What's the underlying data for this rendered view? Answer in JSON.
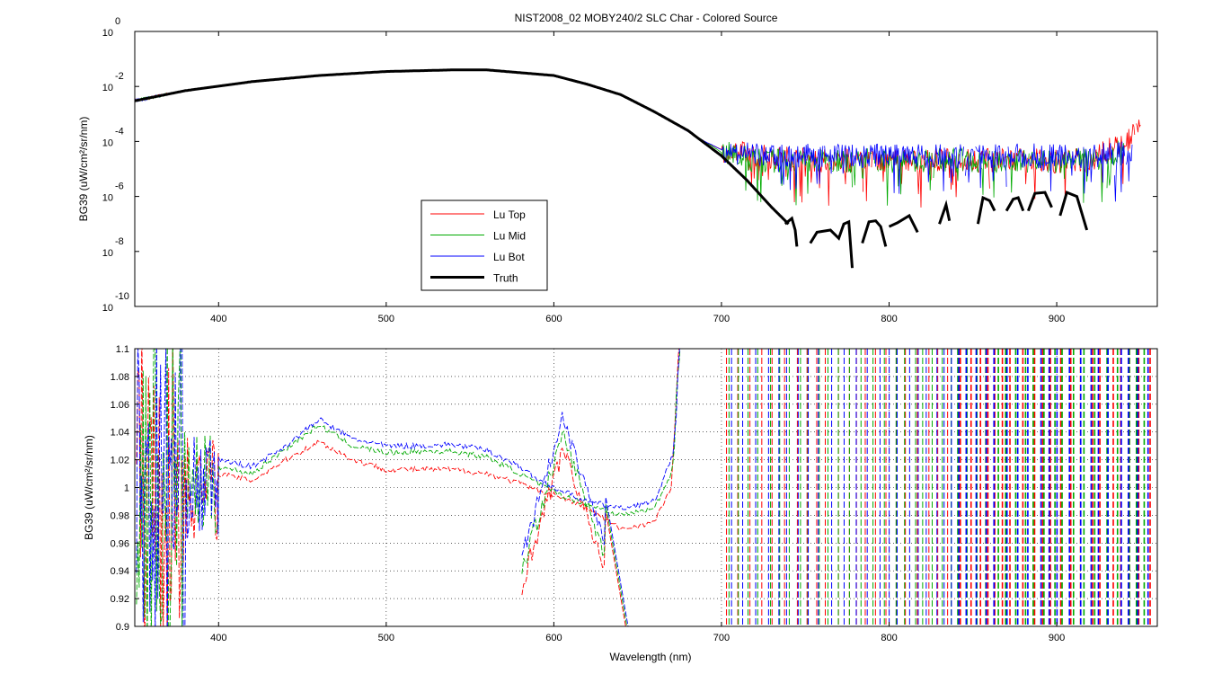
{
  "figure_title": "NIST2008_02  MOBY240/2 SLC Char - Colored Source",
  "colors": {
    "Lu Top": "#ff0000",
    "Lu Mid": "#00aa00",
    "Lu Bot": "#0000ff",
    "Truth": "#000000"
  },
  "chart_data": [
    {
      "type": "line",
      "title": "NIST2008_02  MOBY240/2 SLC Char - Colored Source",
      "xlabel": "",
      "ylabel": "BG39  (uW/cm²/sr/nm)",
      "yscale": "log",
      "xlim": [
        350,
        960
      ],
      "ylim": [
        1e-10,
        1
      ],
      "xticks": [
        400,
        500,
        600,
        700,
        800,
        900
      ],
      "yticks": [
        {
          "base": "10",
          "exp": "0",
          "value": 0
        },
        {
          "base": "10",
          "exp": "-2",
          "value": -2
        },
        {
          "base": "10",
          "exp": "-4",
          "value": -4
        },
        {
          "base": "10",
          "exp": "-6",
          "value": -6
        },
        {
          "base": "10",
          "exp": "-8",
          "value": -8
        },
        {
          "base": "10",
          "exp": "-10",
          "value": -10
        }
      ],
      "grid": false,
      "legend": "lower-left-center",
      "series": [
        {
          "name": "Lu Top",
          "x": [
            350,
            380,
            420,
            460,
            500,
            540,
            560,
            600,
            640,
            660,
            690,
            700,
            720,
            760,
            800,
            840,
            880,
            920,
            940,
            950
          ],
          "y": [
            0.003,
            0.007,
            0.015,
            0.025,
            0.035,
            0.04,
            0.04,
            0.025,
            0.005,
            0.0012,
            0.0001,
            5e-05,
            3e-05,
            2e-05,
            2e-05,
            2e-05,
            2e-05,
            2e-05,
            0.0001,
            0.0003
          ]
        },
        {
          "name": "Lu Mid",
          "x": [
            350,
            380,
            420,
            460,
            500,
            540,
            560,
            600,
            640,
            660,
            690,
            700,
            720,
            760,
            800,
            840,
            880,
            920,
            940
          ],
          "y": [
            0.003,
            0.007,
            0.015,
            0.025,
            0.035,
            0.04,
            0.04,
            0.025,
            0.005,
            0.0012,
            0.0001,
            4e-05,
            2e-05,
            2e-05,
            2e-05,
            2e-05,
            2e-05,
            2e-05,
            5e-05
          ]
        },
        {
          "name": "Lu Bot",
          "x": [
            350,
            380,
            420,
            460,
            500,
            540,
            560,
            600,
            640,
            660,
            690,
            700,
            720,
            760,
            800,
            840,
            880,
            920,
            945
          ],
          "y": [
            0.003,
            0.007,
            0.015,
            0.025,
            0.035,
            0.04,
            0.04,
            0.025,
            0.005,
            0.0012,
            0.0001,
            5e-05,
            3e-05,
            3e-05,
            3e-05,
            3e-05,
            3e-05,
            3e-05,
            4e-05
          ]
        },
        {
          "name": "Truth",
          "x": [
            350,
            380,
            420,
            460,
            500,
            540,
            560,
            600,
            620,
            640,
            660,
            680,
            700,
            715,
            730,
            740
          ],
          "y": [
            0.003,
            0.007,
            0.015,
            0.025,
            0.035,
            0.04,
            0.04,
            0.025,
            0.012,
            0.005,
            0.0012,
            0.00025,
            3e-05,
            4e-06,
            4e-07,
            1e-07
          ]
        }
      ],
      "truth_segments": [
        {
          "x": [
            738,
            742,
            744,
            745
          ],
          "y": [
            1e-07,
            1.6e-07,
            6e-08,
            1.5e-08
          ]
        },
        {
          "x": [
            753,
            757,
            765,
            770,
            773,
            776,
            778
          ],
          "y": [
            2e-08,
            5e-08,
            6e-08,
            3e-08,
            1e-07,
            1.2e-07,
            2.5e-09
          ]
        },
        {
          "x": [
            784,
            788,
            792,
            795,
            798
          ],
          "y": [
            2e-08,
            1.2e-07,
            1.3e-07,
            8e-08,
            1.5e-08
          ]
        },
        {
          "x": [
            800,
            805,
            812,
            817
          ],
          "y": [
            8e-08,
            1.1e-07,
            2e-07,
            5e-08
          ]
        },
        {
          "x": [
            830,
            834,
            836
          ],
          "y": [
            1e-07,
            5e-07,
            1.3e-07
          ]
        },
        {
          "x": [
            853,
            856,
            860,
            863
          ],
          "y": [
            1e-07,
            9e-07,
            7e-07,
            3e-07
          ]
        },
        {
          "x": [
            870,
            874,
            877,
            880
          ],
          "y": [
            3e-07,
            8e-07,
            9e-07,
            3e-07
          ]
        },
        {
          "x": [
            883,
            887,
            893,
            897
          ],
          "y": [
            3e-07,
            1.3e-06,
            1.4e-06,
            4e-07
          ]
        },
        {
          "x": [
            902,
            906,
            912,
            918
          ],
          "y": [
            2e-07,
            1.4e-06,
            1e-06,
            6e-08
          ]
        }
      ]
    },
    {
      "type": "line",
      "title": "",
      "xlabel": "Wavelength (nm)",
      "ylabel": "BG39  (uW/cm²/sr/nm)",
      "xlim": [
        350,
        960
      ],
      "ylim": [
        0.9,
        1.1
      ],
      "xticks": [
        400,
        500,
        600,
        700,
        800,
        900
      ],
      "yticks": [
        "0.9",
        "0.92",
        "0.94",
        "0.96",
        "0.98",
        "1",
        "1.02",
        "1.04",
        "1.06",
        "1.08",
        "1.1"
      ],
      "grid": true,
      "series": [
        {
          "name": "Lu Top",
          "x": [
            400,
            420,
            440,
            460,
            480,
            500,
            520,
            540,
            560,
            580,
            590,
            600,
            610,
            620,
            640,
            660,
            670
          ],
          "y": [
            1.01,
            1.005,
            1.02,
            1.033,
            1.02,
            1.013,
            1.013,
            1.013,
            1.01,
            1.003,
            0.998,
            0.995,
            0.99,
            0.985,
            0.97,
            0.975,
            1.0
          ]
        },
        {
          "name": "Lu Mid",
          "x": [
            400,
            420,
            440,
            460,
            480,
            500,
            520,
            540,
            560,
            580,
            590,
            600,
            610,
            620,
            640,
            660,
            670
          ],
          "y": [
            1.015,
            1.01,
            1.028,
            1.045,
            1.03,
            1.025,
            1.026,
            1.026,
            1.022,
            1.01,
            1.003,
            0.997,
            0.992,
            0.988,
            0.98,
            0.985,
            1.01
          ]
        },
        {
          "name": "Lu Bot",
          "x": [
            400,
            420,
            440,
            460,
            480,
            500,
            520,
            540,
            560,
            580,
            590,
            600,
            610,
            620,
            640,
            660,
            670
          ],
          "y": [
            1.02,
            1.015,
            1.03,
            1.049,
            1.035,
            1.03,
            1.03,
            1.031,
            1.027,
            1.015,
            1.006,
            1.0,
            0.995,
            0.99,
            0.985,
            0.99,
            1.02
          ]
        }
      ]
    }
  ]
}
